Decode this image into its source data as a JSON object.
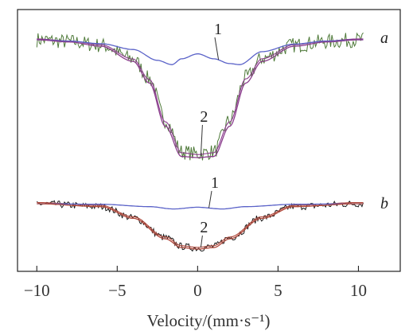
{
  "chart_data": {
    "type": "line",
    "title": "",
    "xlabel": "Velocity/(mm·s⁻¹)",
    "ylabel": "",
    "xlim": [
      -11.2,
      12.6
    ],
    "xticks": [
      -10,
      -5,
      0,
      5,
      10
    ],
    "xtick_labels": [
      "−10",
      "−5",
      "0",
      "5",
      "10"
    ],
    "panels": [
      {
        "label": "a",
        "colors": {
          "measured": "#4f7a3a",
          "subspectrum_1": "#5a62c8",
          "subspectrum_2": "#8a3c8c",
          "envelope": "#8a3c8c"
        },
        "series": [
          {
            "label": "1",
            "x": [
              -10,
              -8,
              -6,
              -4,
              -2.5,
              -1.6,
              -1,
              0,
              1,
              2,
              2.6,
              4,
              6,
              8,
              10
            ],
            "y": [
              1.0,
              0.994,
              0.982,
              0.955,
              0.905,
              0.885,
              0.912,
              0.935,
              0.912,
              0.89,
              0.885,
              0.945,
              0.98,
              0.994,
              1.0
            ]
          },
          {
            "label": "2",
            "x": [
              -10,
              -8,
              -6,
              -4,
              -3,
              -2,
              -1,
              0,
              1,
              2,
              3,
              4,
              6,
              8,
              10
            ],
            "y": [
              1.0,
              0.99,
              0.97,
              0.9,
              0.8,
              0.6,
              0.46,
              0.455,
              0.46,
              0.6,
              0.8,
              0.9,
              0.97,
              0.99,
              1.0
            ]
          }
        ]
      },
      {
        "label": "b",
        "colors": {
          "measured": "#1a1a1a",
          "subspectrum_1": "#5a62c8",
          "subspectrum_2": "#b0473a",
          "envelope": "#b0473a"
        },
        "series": [
          {
            "label": "1",
            "x": [
              -10,
              -6,
              -3,
              -1.5,
              0,
              1.5,
              3,
              6,
              10
            ],
            "y": [
              1.0,
              0.998,
              0.99,
              0.982,
              0.988,
              0.982,
              0.99,
              0.998,
              1.0
            ]
          },
          {
            "label": "2",
            "x": [
              -10,
              -6,
              -4,
              -2,
              -1,
              0,
              1,
              2,
              4,
              6,
              10
            ],
            "y": [
              1.0,
              0.99,
              0.95,
              0.88,
              0.85,
              0.845,
              0.85,
              0.88,
              0.95,
              0.99,
              1.0
            ]
          }
        ]
      }
    ]
  }
}
